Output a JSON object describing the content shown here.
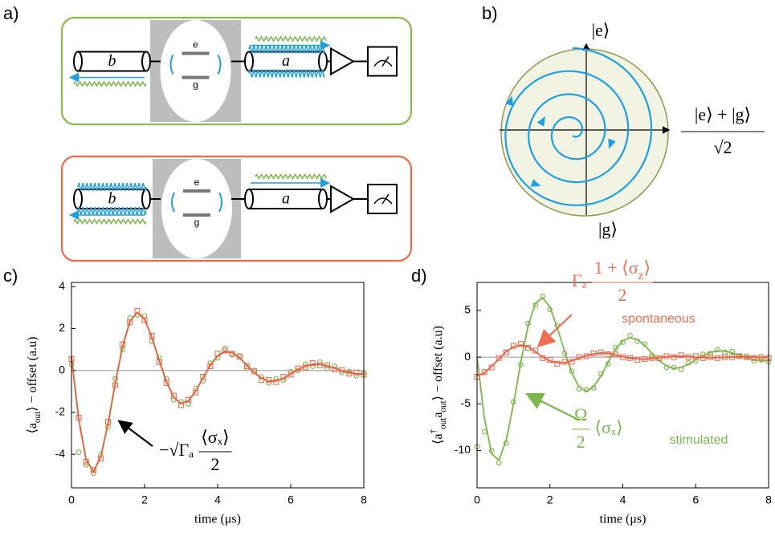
{
  "panel_labels": [
    "a)",
    "b)",
    "c)",
    "d)"
  ],
  "diagram_a": [
    {
      "mode_left": "b",
      "mode_right": "a",
      "level_upper": "e",
      "level_lower": "g"
    },
    {
      "mode_left": "b",
      "mode_right": "a",
      "level_upper": "e",
      "level_lower": "g"
    }
  ],
  "diagram_b": {
    "state_top": "|e⟩",
    "state_bottom": "|g⟩",
    "superposition_numerator": "|e⟩ + |g⟩",
    "superposition_denominator": "√2"
  },
  "chart_data": [
    {
      "type": "line",
      "xlabel": "time (μs)",
      "ylabel_parts": [
        {
          "text": "⟨a"
        },
        {
          "text": "out",
          "sub": true
        },
        {
          "text": "⟩ − offset (a.u)"
        }
      ],
      "xlim": [
        0,
        8
      ],
      "xticks": [
        0,
        2,
        4,
        6,
        8
      ],
      "ylim": [
        -5.6,
        4.2
      ],
      "yticks": [
        -4,
        -2,
        0,
        2,
        4
      ],
      "zero_line": true,
      "x": [
        0,
        0.2,
        0.4,
        0.6,
        0.8,
        1,
        1.2,
        1.4,
        1.6,
        1.8,
        2,
        2.2,
        2.4,
        2.6,
        2.8,
        3,
        3.2,
        3.4,
        3.6,
        3.8,
        4,
        4.2,
        4.4,
        4.6,
        4.8,
        5,
        5.2,
        5.4,
        5.6,
        5.8,
        6,
        6.2,
        6.4,
        6.6,
        6.8,
        7,
        7.2,
        7.4,
        7.6,
        7.8,
        8
      ],
      "series": [
        {
          "style": "markers",
          "marker": "circle",
          "color": "#7ab648",
          "values": [
            0.3,
            -3.9,
            -4.5,
            -4.9,
            -4.0,
            -2.7,
            -0.4,
            1.0,
            2.5,
            2.65,
            2.6,
            1.4,
            0.6,
            -0.4,
            -1.4,
            -1.5,
            -1.6,
            -0.85,
            -0.5,
            0.35,
            0.6,
            1.05,
            0.75,
            0.7,
            0.1,
            0.0,
            -0.3,
            -0.6,
            -0.4,
            -0.45,
            -0.05,
            0.0,
            0.3,
            0.2,
            0.4,
            0.1,
            0.2,
            -0.1,
            -0.05,
            -0.25,
            -0.1
          ]
        },
        {
          "style": "line",
          "color": "#7ab648",
          "values": [
            0.64,
            -2.34,
            -4.26,
            -4.83,
            -4.13,
            -2.54,
            -0.6,
            1.16,
            2.34,
            2.77,
            2.45,
            1.59,
            0.48,
            -0.55,
            -1.28,
            -1.58,
            -1.45,
            -0.98,
            -0.36,
            0.25,
            0.7,
            0.9,
            0.85,
            0.61,
            0.25,
            -0.1,
            -0.37,
            -0.51,
            -0.5,
            -0.37,
            -0.17,
            0.04,
            0.2,
            0.29,
            0.29,
            0.22,
            0.11,
            -0.01,
            -0.1,
            -0.16,
            -0.17
          ]
        },
        {
          "style": "markers",
          "marker": "square",
          "color": "#f26c4f",
          "values": [
            0.55,
            -2.25,
            -4.35,
            -4.75,
            -4.2,
            -2.45,
            -0.7,
            1.25,
            2.3,
            2.85,
            2.4,
            1.65,
            0.4,
            -0.6,
            -1.2,
            -1.65,
            -1.4,
            -1.05,
            -0.3,
            0.2,
            0.8,
            0.95,
            0.8,
            0.65,
            0.2,
            -0.05,
            -0.45,
            -0.45,
            -0.55,
            -0.3,
            -0.2,
            0.1,
            0.15,
            0.35,
            0.25,
            0.25,
            0.05,
            0.02,
            -0.15,
            -0.1,
            -0.2
          ]
        },
        {
          "style": "line",
          "color": "#e8603c",
          "values": [
            0.64,
            -2.34,
            -4.26,
            -4.83,
            -4.13,
            -2.54,
            -0.6,
            1.16,
            2.34,
            2.77,
            2.45,
            1.59,
            0.48,
            -0.55,
            -1.28,
            -1.58,
            -1.45,
            -0.98,
            -0.36,
            0.25,
            0.7,
            0.9,
            0.85,
            0.61,
            0.25,
            -0.1,
            -0.37,
            -0.51,
            -0.5,
            -0.37,
            -0.17,
            0.04,
            0.2,
            0.29,
            0.29,
            0.22,
            0.11,
            -0.01,
            -0.1,
            -0.16,
            -0.17
          ]
        }
      ],
      "annotations": [
        {
          "color": "#000000",
          "prefix": "−√Γₐ",
          "numerator_parts": [
            {
              "text": "⟨σₓ⟩"
            }
          ],
          "denominator": "2"
        }
      ]
    },
    {
      "type": "line",
      "xlabel": "time (μs)",
      "ylabel_parts": [
        {
          "text": "⟨a"
        },
        {
          "text": "†",
          "sup": true
        },
        {
          "text": "out",
          "sub": true
        },
        {
          "text": "a"
        },
        {
          "text": "out",
          "sub": true
        },
        {
          "text": "⟩ − offset (a.u)"
        }
      ],
      "xlim": [
        0,
        8
      ],
      "xticks": [
        0,
        2,
        4,
        6,
        8
      ],
      "ylim": [
        -14,
        8
      ],
      "yticks": [
        -10,
        -5,
        0,
        5
      ],
      "zero_line": true,
      "x": [
        0,
        0.2,
        0.4,
        0.6,
        0.8,
        1,
        1.2,
        1.4,
        1.6,
        1.8,
        2,
        2.2,
        2.4,
        2.6,
        2.8,
        3,
        3.2,
        3.4,
        3.6,
        3.8,
        4,
        4.2,
        4.4,
        4.6,
        4.8,
        5,
        5.2,
        5.4,
        5.6,
        5.8,
        6,
        6.2,
        6.4,
        6.6,
        6.8,
        7,
        7.2,
        7.4,
        7.6,
        7.8,
        8
      ],
      "series": [
        {
          "style": "markers",
          "marker": "circle",
          "color": "#7ab648",
          "values": [
            -9.6,
            -8.0,
            -10.0,
            -11.3,
            -9.2,
            -4.8,
            -0.8,
            3.6,
            5.6,
            6.5,
            5.1,
            3.4,
            0.4,
            -1.5,
            -3.4,
            -3.5,
            -3.3,
            -1.8,
            -0.7,
            1.0,
            1.6,
            2.3,
            1.7,
            1.4,
            0.2,
            -0.2,
            -1.1,
            -1.1,
            -1.3,
            -0.6,
            -0.4,
            0.3,
            0.4,
            0.8,
            0.5,
            0.6,
            0.1,
            0.0,
            -0.4,
            -0.3,
            -0.5
          ]
        },
        {
          "style": "line",
          "color": "#7ab648",
          "values": [
            0,
            -6.5,
            -10.34,
            -11.03,
            -8.93,
            -5.02,
            -0.53,
            3.33,
            5.74,
            6.37,
            5.35,
            3.19,
            0.62,
            -1.67,
            -3.18,
            -3.67,
            -3.18,
            -2.0,
            -0.53,
            0.82,
            1.74,
            2.09,
            1.88,
            1.25,
            0.41,
            -0.38,
            -0.95,
            -1.2,
            -1.1,
            -0.77,
            -0.29,
            0.17,
            0.51,
            0.68,
            0.64,
            0.46,
            0.21,
            -0.07,
            -0.27,
            -0.39,
            -0.38
          ]
        },
        {
          "style": "markers",
          "marker": "square",
          "color": "#f26c4f",
          "values": [
            -2.1,
            -1.6,
            -1.1,
            -0.1,
            0.5,
            1.2,
            1.4,
            1.0,
            0.7,
            -0.1,
            -0.3,
            -0.7,
            -0.5,
            -0.5,
            0.0,
            0.1,
            0.4,
            0.5,
            0.3,
            0.3,
            0.0,
            -0.1,
            -0.3,
            -0.2,
            -0.1,
            -0.1,
            0.1,
            0.0,
            0.2,
            0.0,
            0.1,
            -0.1,
            0.0,
            -0.1,
            0.0,
            0.0,
            0.1,
            0.0,
            -0.1,
            0.0,
            -0.1
          ]
        },
        {
          "style": "line",
          "color": "#e8603c",
          "values": [
            -2.0,
            -1.7,
            -1.0,
            -0.2,
            0.6,
            1.1,
            1.3,
            1.1,
            0.6,
            0.0,
            -0.4,
            -0.6,
            -0.6,
            -0.4,
            -0.1,
            0.15,
            0.35,
            0.45,
            0.4,
            0.25,
            0.05,
            -0.1,
            -0.2,
            -0.22,
            -0.15,
            -0.05,
            0.05,
            0.1,
            0.1,
            0.06,
            0.0,
            -0.05,
            -0.06,
            -0.05,
            -0.02,
            0.01,
            0.03,
            0.03,
            0.01,
            -0.01,
            -0.02
          ]
        }
      ],
      "annotations": [
        {
          "color": "#f26c4f",
          "prefix": "Γₐ",
          "numerator_parts": [
            {
              "text": "1 + ⟨σ"
            },
            {
              "text": "z",
              "sub": true
            },
            {
              "text": "⟩"
            }
          ],
          "denominator": "2"
        },
        {
          "color": "#f26c4f",
          "text": "spontaneous"
        },
        {
          "color": "#7ab648",
          "suffix": "⟨σₓ⟩",
          "numerator_parts": [
            {
              "text": "Ω"
            }
          ],
          "denominator": "2"
        },
        {
          "color": "#7ab648",
          "text": "stimulated"
        }
      ]
    }
  ]
}
